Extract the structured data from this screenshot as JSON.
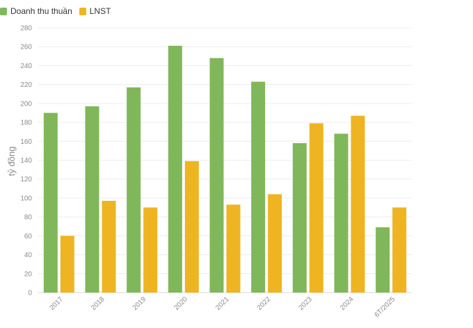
{
  "chart_data": {
    "type": "bar",
    "categories": [
      "2017",
      "2018",
      "2019",
      "2020",
      "2021",
      "2022",
      "2023",
      "2024",
      "6T/2025"
    ],
    "series": [
      {
        "name": "Doanh thu thuần",
        "color": "#80b75a",
        "values": [
          190,
          197,
          217,
          261,
          248,
          223,
          158,
          168,
          69
        ]
      },
      {
        "name": "LNST",
        "color": "#eeb422",
        "values": [
          60,
          97,
          90,
          139,
          93,
          104,
          179,
          187,
          90
        ]
      }
    ],
    "ylabel": "tỷ đồng",
    "ylim": [
      0,
      280
    ],
    "yticks": [
      0,
      20,
      40,
      60,
      80,
      100,
      120,
      140,
      160,
      180,
      200,
      220,
      240,
      260,
      280
    ],
    "grid": true,
    "legend_position": "top-left"
  }
}
